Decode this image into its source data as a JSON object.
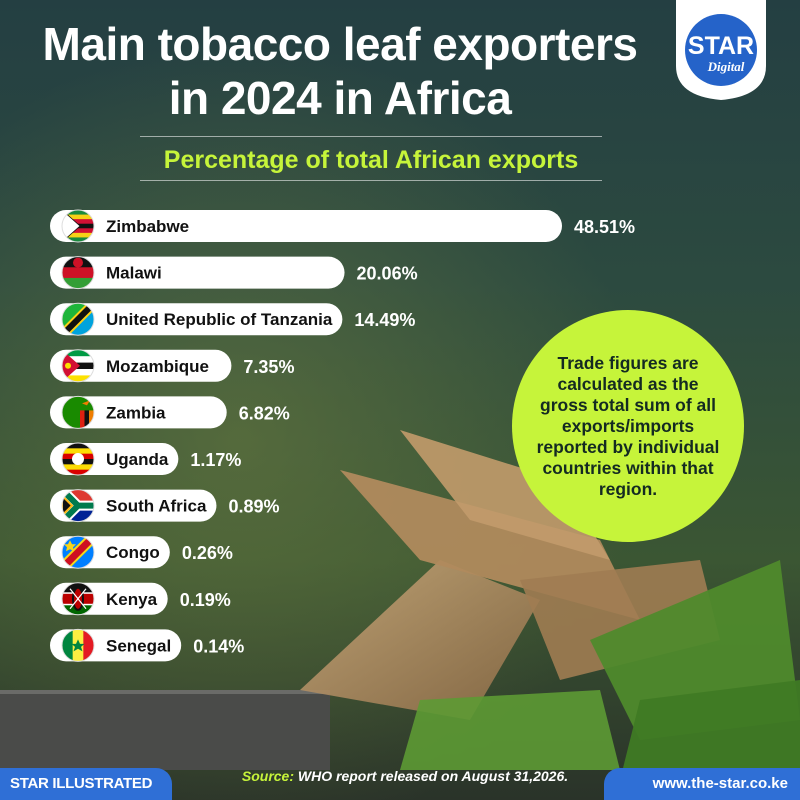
{
  "header": {
    "title_line1": "Main tobacco leaf exporters",
    "title_line2": "in 2024 in Africa",
    "subtitle": "Percentage of total African exports"
  },
  "logo": {
    "brand": "STAR",
    "sub": "Digital"
  },
  "note": {
    "text": "Trade figures are calculated as the gross total sum of all exports/imports reported by individual countries within that region."
  },
  "footer": {
    "left": "STAR ILLUSTRATED",
    "source_label": "Source:",
    "source_text": " WHO report released on August 31,2026.",
    "right": "www.the-star.co.ke"
  },
  "colors": {
    "accent": "#c6f43a",
    "bar": "#ffffff",
    "footer": "#2f6fd6",
    "background": "#1d3a36"
  },
  "chart_data": {
    "type": "bar",
    "orientation": "horizontal",
    "title": "Main tobacco leaf exporters in 2024 in Africa",
    "subtitle": "Percentage of total African exports",
    "categories": [
      "Zimbabwe",
      "Malawi",
      "United Republic of Tanzania",
      "Mozambique",
      "Zambia",
      "Uganda",
      "South Africa",
      "Congo",
      "Kenya",
      "Senegal"
    ],
    "values": [
      48.51,
      20.06,
      14.49,
      7.35,
      6.82,
      1.17,
      0.89,
      0.26,
      0.19,
      0.14
    ],
    "value_labels": [
      "48.51%",
      "20.06%",
      "14.49%",
      "7.35%",
      "6.82%",
      "1.17%",
      "0.89%",
      "0.26%",
      "0.19%",
      "0.14%"
    ],
    "flag_icons": [
      "zimbabwe-flag-icon",
      "malawi-flag-icon",
      "tanzania-flag-icon",
      "mozambique-flag-icon",
      "zambia-flag-icon",
      "uganda-flag-icon",
      "south-africa-flag-icon",
      "congo-flag-icon",
      "kenya-flag-icon",
      "senegal-flag-icon"
    ],
    "unit": "%",
    "xlabel": "",
    "ylabel": "",
    "grid": false
  }
}
